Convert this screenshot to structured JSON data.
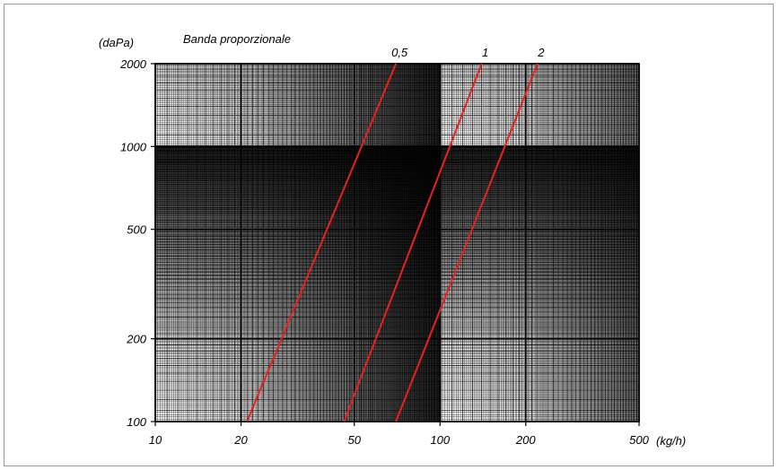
{
  "chart_data": {
    "type": "line",
    "title": "Banda proporzionale",
    "xlabel": "(kg/h)",
    "ylabel": "(daPa)",
    "x_scale": "log",
    "y_scale": "log",
    "xlim": [
      10,
      500
    ],
    "ylim": [
      100,
      2000
    ],
    "x_ticks": [
      10,
      20,
      50,
      100,
      200,
      500
    ],
    "x_tick_labels": [
      "10",
      "20",
      "50",
      "100",
      "200",
      "500"
    ],
    "y_ticks": [
      100,
      200,
      500,
      1000,
      2000
    ],
    "y_tick_labels": [
      "100",
      "200",
      "500",
      "1000",
      "2000"
    ],
    "grid": true,
    "series": [
      {
        "name": "0,5",
        "x": [
          21,
          70
        ],
        "y": [
          100,
          2000
        ]
      },
      {
        "name": "1",
        "x": [
          46,
          140
        ],
        "y": [
          100,
          2000
        ]
      },
      {
        "name": "2",
        "x": [
          70,
          220
        ],
        "y": [
          100,
          2000
        ]
      }
    ],
    "line_color": "#e8211f",
    "grid_color": "#000000"
  }
}
